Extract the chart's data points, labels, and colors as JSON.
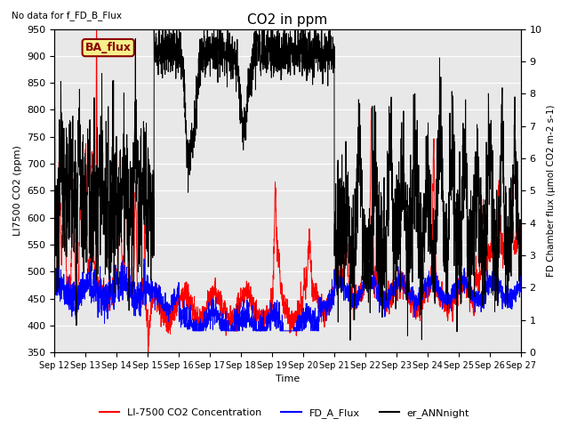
{
  "title": "CO2 in ppm",
  "top_left_text": "No data for f_FD_B_Flux",
  "box_label": "BA_flux",
  "xlabel": "Time",
  "ylabel_left": "LI7500 CO2 (ppm)",
  "ylabel_right": "FD Chamber flux (μmol CO2 m-2 s-1)",
  "ylim_left": [
    350,
    950
  ],
  "ylim_right": [
    0.0,
    10.0
  ],
  "yticks_left": [
    350,
    400,
    450,
    500,
    550,
    600,
    650,
    700,
    750,
    800,
    850,
    900,
    950
  ],
  "yticks_right": [
    0.0,
    1.0,
    2.0,
    3.0,
    4.0,
    5.0,
    6.0,
    7.0,
    8.0,
    9.0,
    10.0
  ],
  "xtick_labels": [
    "Sep 12",
    "Sep 13",
    "Sep 14",
    "Sep 15",
    "Sep 16",
    "Sep 17",
    "Sep 18",
    "Sep 19",
    "Sep 20",
    "Sep 21",
    "Sep 22",
    "Sep 23",
    "Sep 24",
    "Sep 25",
    "Sep 26",
    "Sep 27"
  ],
  "background_color": "#e8e8e8",
  "line_red_label": "LI-7500 CO2 Concentration",
  "line_blue_label": "FD_A_Flux",
  "line_black_label": "er_ANNnight",
  "line_red_color": "red",
  "line_blue_color": "blue",
  "line_black_color": "black",
  "figsize": [
    6.4,
    4.8
  ],
  "dpi": 100
}
